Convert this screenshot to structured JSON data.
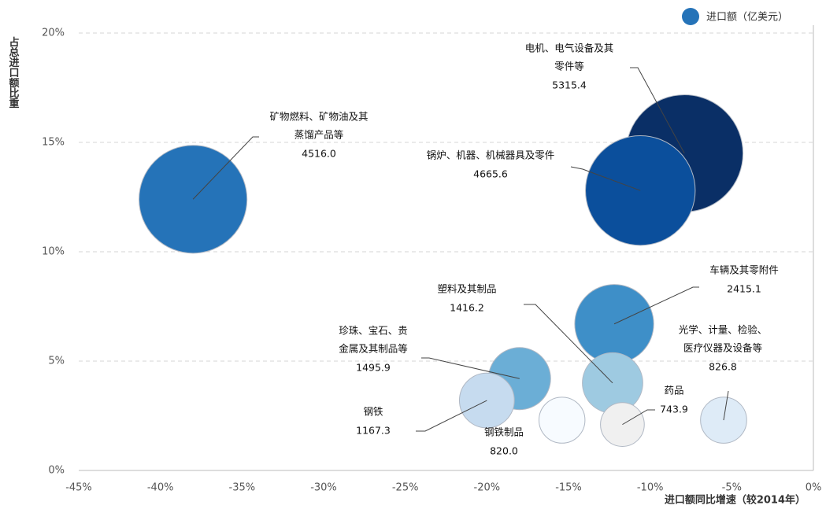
{
  "chart_data": {
    "type": "bubble",
    "x_label": "进口额同比增速（较2014年）",
    "y_label": "占总进口额比重",
    "legend": "进口额（亿美元）",
    "legend_color": "#2573b8",
    "xlim": [
      -45,
      0
    ],
    "ylim": [
      0,
      20
    ],
    "xticks": [
      {
        "value": -45,
        "label": "-45%"
      },
      {
        "value": -40,
        "label": "-40%"
      },
      {
        "value": -35,
        "label": "-35%"
      },
      {
        "value": -30,
        "label": "-30%"
      },
      {
        "value": -25,
        "label": "-25%"
      },
      {
        "value": -20,
        "label": "-20%"
      },
      {
        "value": -15,
        "label": "-15%"
      },
      {
        "value": -10,
        "label": "-10%"
      },
      {
        "value": -5,
        "label": "-5%"
      },
      {
        "value": 0,
        "label": "0%"
      }
    ],
    "yticks": [
      {
        "value": 0,
        "label": "0%"
      },
      {
        "value": 5,
        "label": "5%"
      },
      {
        "value": 10,
        "label": "10%"
      },
      {
        "value": 15,
        "label": "15%"
      },
      {
        "value": 20,
        "label": "20%"
      }
    ],
    "grid": true,
    "points": [
      {
        "label": [
          "矿物燃料、矿物油及其",
          "蒸馏产品等"
        ],
        "x": -38,
        "y": 12.4,
        "size": 4516,
        "size_label": "4516.0",
        "color": "#2573b8"
      },
      {
        "label": [
          "电机、电气设备及其",
          "零件等"
        ],
        "x": -7.9,
        "y": 14.5,
        "size": 5315.4,
        "size_label": "5315.4",
        "color": "#0a2f66"
      },
      {
        "label": [
          "锅炉、机器、机械器具及零件"
        ],
        "x": -10.6,
        "y": 12.8,
        "size": 4665.6,
        "size_label": "4665.6",
        "color": "#0b4f9c"
      },
      {
        "label": [
          "车辆及其零附件"
        ],
        "x": -12.2,
        "y": 6.7,
        "size": 2415.1,
        "size_label": "2415.1",
        "color": "#3e8fc8"
      },
      {
        "label": [
          "塑料及其制品"
        ],
        "x": -12.3,
        "y": 4.0,
        "size": 1416.2,
        "size_label": "1416.2",
        "color": "#9ecae1"
      },
      {
        "label": [
          "珍珠、宝石、贵",
          "金属及其制品等"
        ],
        "x": -18.0,
        "y": 4.2,
        "size": 1495.9,
        "size_label": "1495.9",
        "color": "#6baed6"
      },
      {
        "label": [
          "钢铁"
        ],
        "x": -20.0,
        "y": 3.2,
        "size": 1167.3,
        "size_label": "1167.3",
        "color": "#c6dbef"
      },
      {
        "label": [
          "钢铁制品"
        ],
        "x": -15.4,
        "y": 2.3,
        "size": 820,
        "size_label": "820.0",
        "color": "#f7fbff"
      },
      {
        "label": [
          "药品"
        ],
        "x": -11.7,
        "y": 2.1,
        "size": 743.9,
        "size_label": "743.9",
        "color": "#f0f0f0"
      },
      {
        "label": [
          "光学、计量、检验、",
          "医疗仪器及设备等"
        ],
        "x": -5.5,
        "y": 2.3,
        "size": 826.8,
        "size_label": "826.8",
        "color": "#deebf7"
      }
    ]
  }
}
